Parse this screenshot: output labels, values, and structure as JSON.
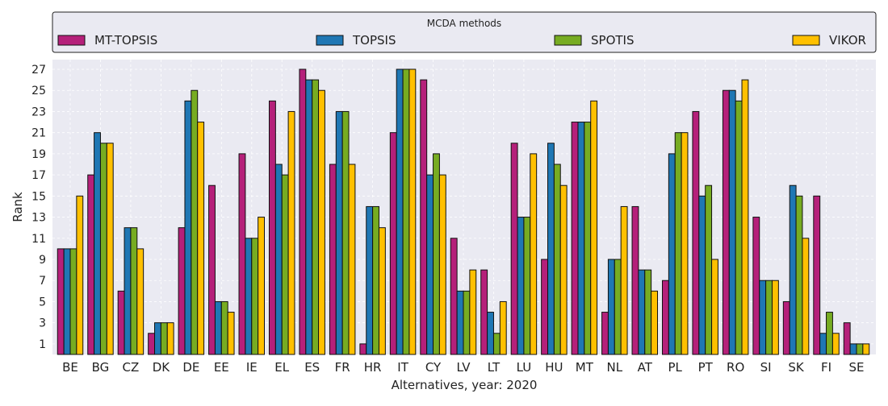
{
  "chart_data": {
    "type": "bar",
    "legend_title": "MCDA methods",
    "legend_placement": "top",
    "xlabel": "Alternatives, year: 2020",
    "ylabel": "Rank",
    "ylim": [
      0,
      28
    ],
    "yticks": [
      1,
      3,
      5,
      7,
      9,
      11,
      13,
      15,
      17,
      19,
      21,
      23,
      25,
      27
    ],
    "grid": true,
    "categories": [
      "BE",
      "BG",
      "CZ",
      "DK",
      "DE",
      "EE",
      "IE",
      "EL",
      "ES",
      "FR",
      "HR",
      "IT",
      "CY",
      "LV",
      "LT",
      "LU",
      "HU",
      "MT",
      "NL",
      "AT",
      "PL",
      "PT",
      "RO",
      "SI",
      "SK",
      "FI",
      "SE"
    ],
    "series": [
      {
        "name": "MT-TOPSIS",
        "color": "#b5207a",
        "values": [
          10,
          17,
          6,
          2,
          12,
          16,
          19,
          24,
          27,
          18,
          1,
          21,
          26,
          11,
          8,
          20,
          9,
          22,
          4,
          14,
          7,
          23,
          25,
          13,
          5,
          15,
          3
        ]
      },
      {
        "name": "TOPSIS",
        "color": "#1f77b4",
        "values": [
          10,
          21,
          12,
          3,
          24,
          5,
          11,
          18,
          26,
          23,
          14,
          27,
          17,
          6,
          4,
          13,
          20,
          22,
          9,
          8,
          19,
          15,
          25,
          7,
          16,
          2,
          1
        ]
      },
      {
        "name": "SPOTIS",
        "color": "#77ac22",
        "values": [
          10,
          20,
          12,
          3,
          25,
          5,
          11,
          17,
          26,
          23,
          14,
          27,
          19,
          6,
          2,
          13,
          18,
          22,
          9,
          8,
          21,
          16,
          24,
          7,
          15,
          4,
          1
        ]
      },
      {
        "name": "VIKOR",
        "color": "#ffc000",
        "values": [
          15,
          20,
          10,
          3,
          22,
          4,
          13,
          23,
          25,
          18,
          12,
          27,
          17,
          8,
          5,
          19,
          16,
          24,
          14,
          6,
          21,
          9,
          26,
          7,
          11,
          2,
          1
        ]
      }
    ]
  }
}
